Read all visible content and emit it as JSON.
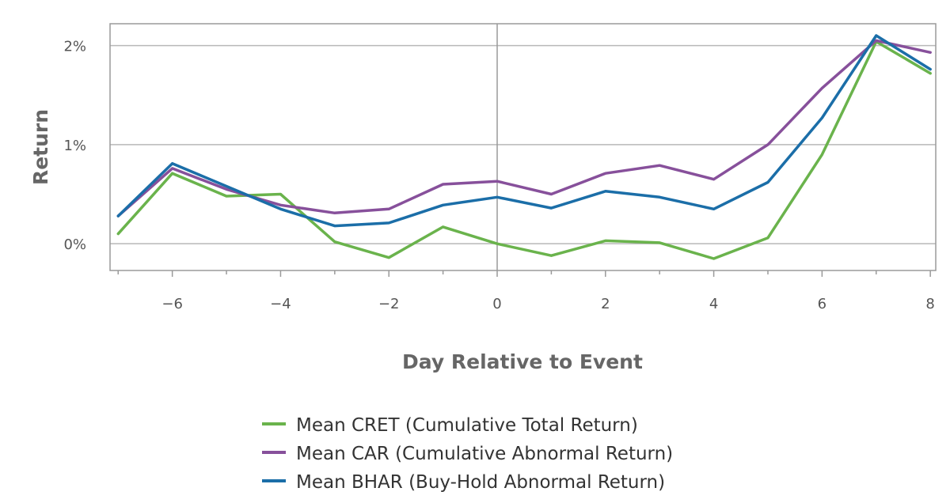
{
  "chart_data": {
    "type": "line",
    "title": "",
    "xlabel": "Day Relative to Event",
    "ylabel": "Return",
    "x": [
      -7,
      -6,
      -5,
      -4,
      -3,
      -2,
      -1,
      0,
      1,
      2,
      3,
      4,
      5,
      6,
      7,
      8
    ],
    "xlim": [
      -7.15,
      8.1
    ],
    "ylim": [
      -0.27,
      2.22
    ],
    "x_ticks": [
      -6,
      -4,
      -2,
      0,
      2,
      4,
      6,
      8
    ],
    "x_tick_labels": [
      "−6",
      "−4",
      "−2",
      "0",
      "2",
      "4",
      "6",
      "8"
    ],
    "y_ticks": [
      0,
      1,
      2
    ],
    "y_tick_labels": [
      "0%",
      "1%",
      "2%"
    ],
    "grid": "horizontal",
    "legend_position": "bottom",
    "series": [
      {
        "name": "Mean CRET (Cumulative Total Return)",
        "color": "#6ab34c",
        "values": [
          0.1,
          0.71,
          0.48,
          0.5,
          0.02,
          -0.14,
          0.17,
          0.0,
          -0.12,
          0.03,
          0.01,
          -0.15,
          0.06,
          0.9,
          2.04,
          1.72
        ]
      },
      {
        "name": "Mean CAR (Cumulative Abnormal Return)",
        "color": "#87509b",
        "values": [
          0.28,
          0.76,
          0.55,
          0.39,
          0.31,
          0.35,
          0.6,
          0.63,
          0.5,
          0.71,
          0.79,
          0.65,
          1.0,
          1.57,
          2.05,
          1.93
        ]
      },
      {
        "name": "Mean BHAR (Buy-Hold Abnormal Return)",
        "color": "#1b6ea8",
        "values": [
          0.28,
          0.81,
          0.58,
          0.35,
          0.18,
          0.21,
          0.39,
          0.47,
          0.36,
          0.53,
          0.47,
          0.35,
          0.62,
          1.27,
          2.1,
          1.76
        ]
      }
    ]
  }
}
